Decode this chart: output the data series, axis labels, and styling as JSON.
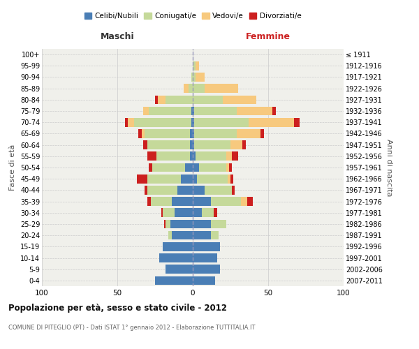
{
  "age_groups": [
    "0-4",
    "5-9",
    "10-14",
    "15-19",
    "20-24",
    "25-29",
    "30-34",
    "35-39",
    "40-44",
    "45-49",
    "50-54",
    "55-59",
    "60-64",
    "65-69",
    "70-74",
    "75-79",
    "80-84",
    "85-89",
    "90-94",
    "95-99",
    "100+"
  ],
  "birth_years": [
    "2007-2011",
    "2002-2006",
    "1997-2001",
    "1992-1996",
    "1987-1991",
    "1982-1986",
    "1977-1981",
    "1972-1976",
    "1967-1971",
    "1962-1966",
    "1957-1961",
    "1952-1956",
    "1947-1951",
    "1942-1946",
    "1937-1941",
    "1932-1936",
    "1927-1931",
    "1922-1926",
    "1917-1921",
    "1912-1916",
    "≤ 1911"
  ],
  "male": {
    "celibi": [
      25,
      18,
      22,
      20,
      14,
      15,
      12,
      14,
      10,
      8,
      5,
      2,
      2,
      2,
      1,
      1,
      0,
      0,
      0,
      0,
      0
    ],
    "coniugati": [
      0,
      0,
      0,
      0,
      2,
      3,
      8,
      14,
      20,
      22,
      22,
      22,
      28,
      30,
      38,
      28,
      18,
      3,
      1,
      0,
      0
    ],
    "vedovi": [
      0,
      0,
      0,
      0,
      0,
      0,
      0,
      0,
      0,
      0,
      0,
      0,
      0,
      2,
      4,
      4,
      5,
      3,
      0,
      0,
      0
    ],
    "divorziati": [
      0,
      0,
      0,
      0,
      0,
      1,
      1,
      2,
      2,
      7,
      2,
      6,
      3,
      2,
      2,
      0,
      2,
      0,
      0,
      0,
      0
    ]
  },
  "female": {
    "nubili": [
      15,
      18,
      16,
      18,
      12,
      12,
      6,
      12,
      8,
      3,
      4,
      2,
      1,
      1,
      1,
      1,
      0,
      0,
      0,
      0,
      0
    ],
    "coniugate": [
      0,
      0,
      0,
      0,
      5,
      10,
      8,
      20,
      18,
      20,
      18,
      20,
      24,
      28,
      36,
      28,
      20,
      8,
      2,
      2,
      0
    ],
    "vedove": [
      0,
      0,
      0,
      0,
      0,
      0,
      0,
      4,
      0,
      2,
      2,
      4,
      8,
      16,
      30,
      24,
      22,
      22,
      6,
      2,
      0
    ],
    "divorziate": [
      0,
      0,
      0,
      0,
      0,
      0,
      2,
      4,
      2,
      2,
      2,
      4,
      2,
      2,
      4,
      2,
      0,
      0,
      0,
      0,
      0
    ]
  },
  "colors": {
    "celibi": "#4a7eb5",
    "coniugati": "#c5d99a",
    "vedovi": "#f7c97e",
    "divorziati": "#cc1f1f"
  },
  "title": "Popolazione per età, sesso e stato civile - 2012",
  "subtitle": "COMUNE DI PITEGLIO (PT) - Dati ISTAT 1° gennaio 2012 - Elaborazione TUTTITALIA.IT",
  "xlabel_left": "Maschi",
  "xlabel_right": "Femmine",
  "ylabel_left": "Fasce di età",
  "ylabel_right": "Anni di nascita",
  "xlim": 100,
  "bg_color": "#f0f0eb",
  "legend_labels": [
    "Celibi/Nubili",
    "Coniugati/e",
    "Vedovi/e",
    "Divorziati/e"
  ]
}
